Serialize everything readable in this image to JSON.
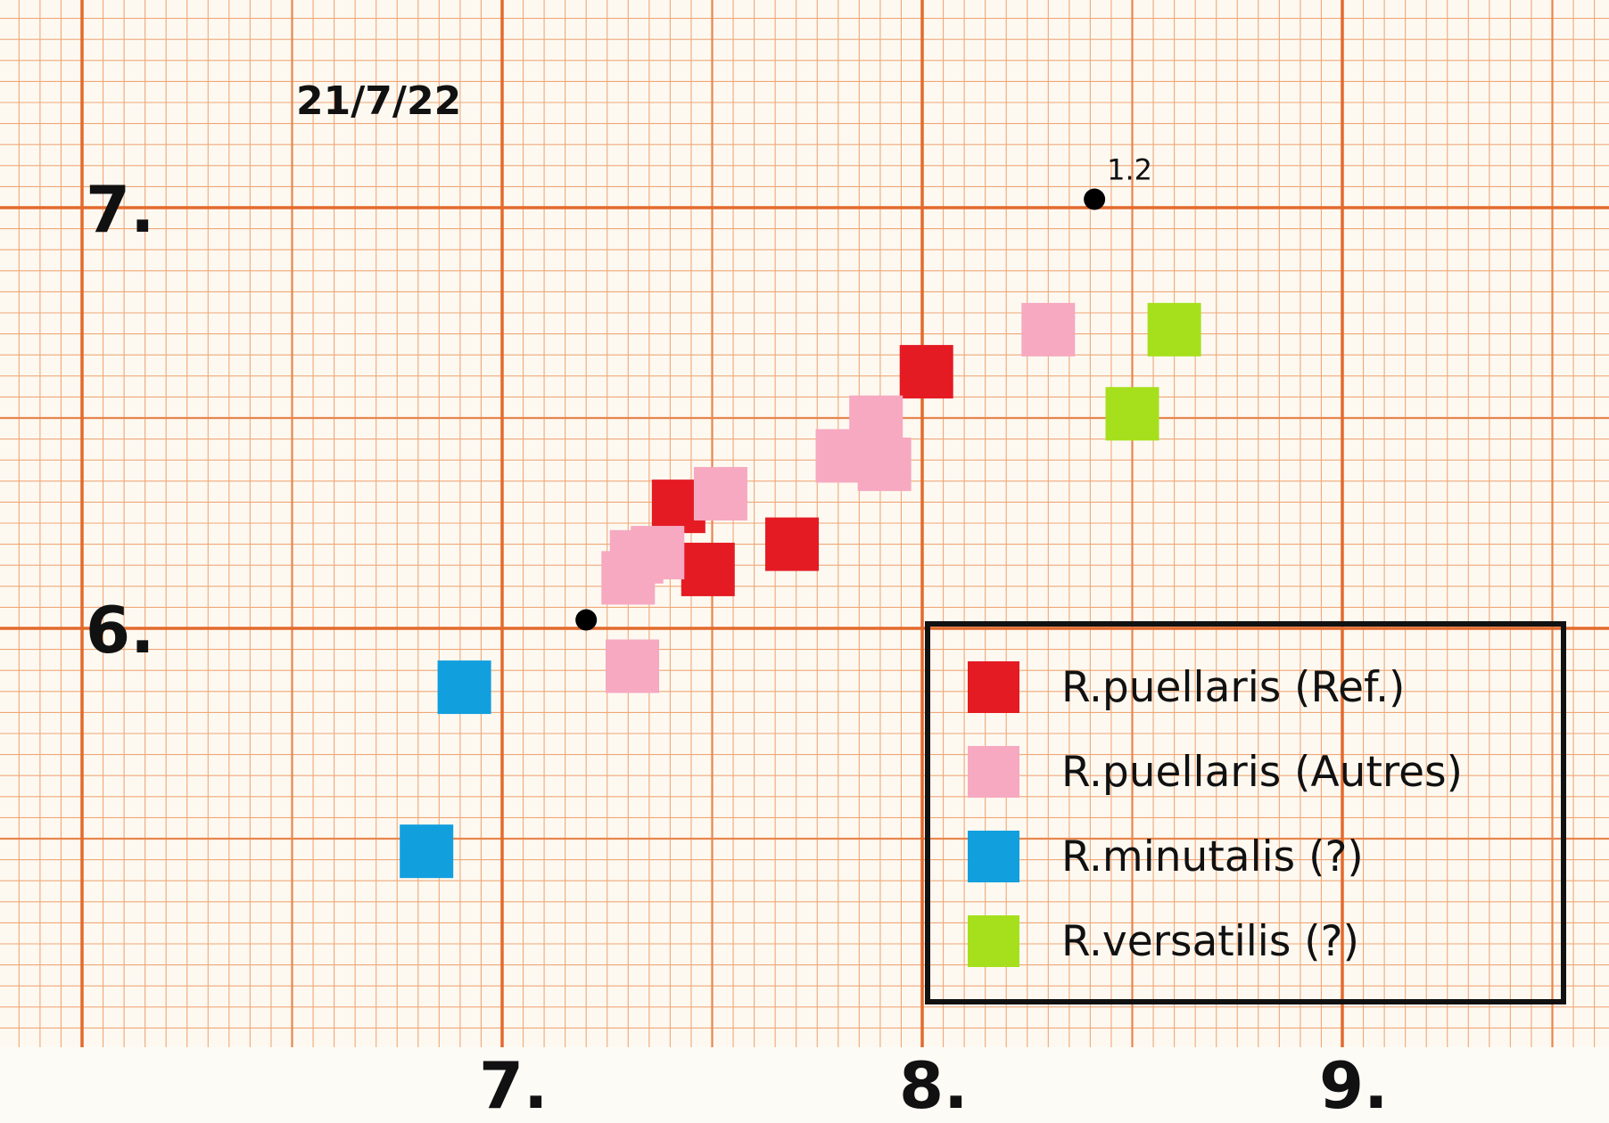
{
  "annotations": {
    "date": "21/7/22",
    "point_label": "1.2"
  },
  "chart_data": {
    "type": "scatter",
    "title": "",
    "xlabel": "",
    "ylabel": "",
    "xlim": [
      6.0,
      9.0
    ],
    "ylim": [
      5.0,
      7.0
    ],
    "grid": true,
    "x_ticks": [
      "7.",
      "8.",
      "9."
    ],
    "y_ticks": [
      "6.",
      "7."
    ],
    "legend_position": "bottom-right",
    "series": [
      {
        "name": "R.puellaris (Ref.)",
        "color": "#e41b23",
        "points": [
          [
            7.42,
            6.29
          ],
          [
            7.49,
            6.14
          ],
          [
            7.69,
            6.2
          ],
          [
            8.01,
            6.61
          ]
        ]
      },
      {
        "name": "R.puellaris (Autres)",
        "color": "#f6a9c1",
        "points": [
          [
            7.3,
            6.12
          ],
          [
            7.32,
            6.17
          ],
          [
            7.37,
            6.18
          ],
          [
            7.52,
            6.32
          ],
          [
            7.81,
            6.41
          ],
          [
            7.89,
            6.49
          ],
          [
            7.91,
            6.39
          ],
          [
            8.3,
            6.71
          ],
          [
            7.31,
            5.91
          ]
        ]
      },
      {
        "name": "R.minutalis (?)",
        "color": "#129fde",
        "points": [
          [
            6.91,
            5.86
          ],
          [
            6.82,
            5.47
          ]
        ]
      },
      {
        "name": "R.versatilis (?)",
        "color": "#a6e01c",
        "points": [
          [
            8.6,
            6.71
          ],
          [
            8.5,
            6.51
          ]
        ]
      }
    ],
    "markers": [
      {
        "x": 7.2,
        "y": 6.02,
        "label": ""
      },
      {
        "x": 8.41,
        "y": 7.02,
        "label": "1.2"
      }
    ]
  }
}
